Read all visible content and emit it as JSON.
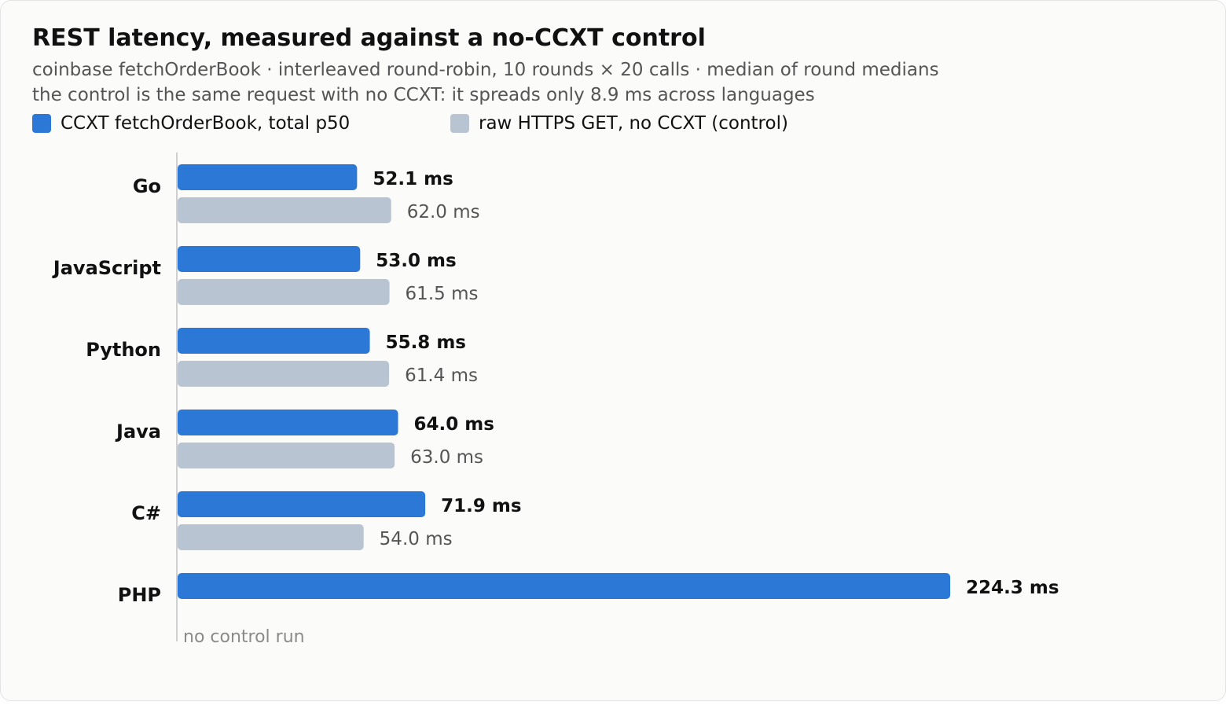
{
  "chart_data": {
    "type": "bar",
    "orientation": "horizontal",
    "title": "REST latency, measured against a no-CCXT control",
    "subtitle_lines": [
      "coinbase fetchOrderBook · interleaved round-robin, 10 rounds × 20 calls · median of round medians",
      "the control is the same request with no CCXT: it spreads only 8.9 ms across languages"
    ],
    "legend_position": "top-left",
    "grid": false,
    "unit": "ms",
    "categories": [
      "Go",
      "JavaScript",
      "Python",
      "Java",
      "C#",
      "PHP"
    ],
    "series": [
      {
        "name": "CCXT fetchOrderBook, total p50",
        "color": "#2b78d6",
        "values": [
          52.1,
          53.0,
          55.8,
          64.0,
          71.9,
          224.3
        ],
        "labels": [
          "52.1 ms",
          "53.0 ms",
          "55.8 ms",
          "64.0 ms",
          "71.9 ms",
          "224.3 ms"
        ]
      },
      {
        "name": "raw HTTPS GET, no CCXT (control)",
        "color": "#b9c4d3",
        "values": [
          62.0,
          61.5,
          61.4,
          63.0,
          54.0,
          null
        ],
        "labels": [
          "62.0 ms",
          "61.5 ms",
          "61.4 ms",
          "63.0 ms",
          "54.0 ms",
          null
        ]
      }
    ],
    "missing_note": "no control run"
  }
}
